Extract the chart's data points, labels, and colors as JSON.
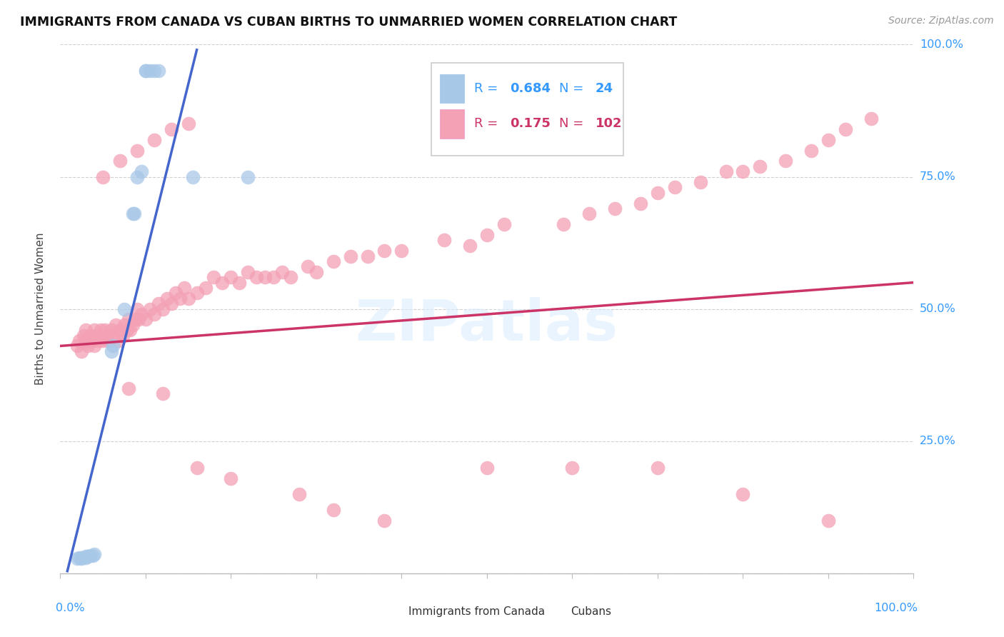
{
  "title": "IMMIGRANTS FROM CANADA VS CUBAN BIRTHS TO UNMARRIED WOMEN CORRELATION CHART",
  "source": "Source: ZipAtlas.com",
  "ylabel": "Births to Unmarried Women",
  "canada_R": 0.684,
  "canada_N": 24,
  "cubans_R": 0.175,
  "cubans_N": 102,
  "watermark": "ZIPatlas",
  "canada_color": "#A8C8E8",
  "cubans_color": "#F4A0B5",
  "canada_line_color": "#4466CC",
  "cubans_line_color": "#CC3366",
  "canada_points_x": [
    0.02,
    0.025,
    0.03,
    0.03,
    0.035,
    0.04,
    0.042,
    0.045,
    0.05,
    0.055,
    0.06,
    0.065,
    0.07,
    0.075,
    0.08,
    0.085,
    0.09,
    0.095,
    0.1,
    0.105,
    0.11,
    0.115,
    0.155,
    0.22
  ],
  "canada_points_y": [
    0.03,
    0.03,
    0.03,
    0.028,
    0.032,
    0.035,
    0.035,
    0.038,
    0.42,
    0.43,
    0.44,
    0.68,
    0.68,
    0.72,
    0.76,
    0.76,
    0.95,
    0.95,
    0.95,
    0.95,
    0.95,
    0.95,
    0.75,
    0.75
  ],
  "cubans_points_x": [
    0.02,
    0.022,
    0.025,
    0.027,
    0.03,
    0.03,
    0.032,
    0.035,
    0.037,
    0.04,
    0.04,
    0.042,
    0.045,
    0.047,
    0.05,
    0.052,
    0.055,
    0.057,
    0.06,
    0.062,
    0.065,
    0.068,
    0.07,
    0.073,
    0.075,
    0.078,
    0.08,
    0.082,
    0.085,
    0.088,
    0.09,
    0.092,
    0.095,
    0.1,
    0.105,
    0.11,
    0.115,
    0.12,
    0.125,
    0.13,
    0.135,
    0.14,
    0.145,
    0.15,
    0.16,
    0.17,
    0.18,
    0.19,
    0.2,
    0.21,
    0.22,
    0.23,
    0.24,
    0.25,
    0.26,
    0.27,
    0.29,
    0.3,
    0.32,
    0.34,
    0.36,
    0.38,
    0.4,
    0.42,
    0.45,
    0.48,
    0.5,
    0.52,
    0.54,
    0.56,
    0.59,
    0.62,
    0.65,
    0.68,
    0.7,
    0.72,
    0.75,
    0.78,
    0.8,
    0.82,
    0.85,
    0.88,
    0.9,
    0.92,
    0.95,
    0.65,
    0.7,
    0.75,
    0.8,
    0.85,
    0.9,
    0.08,
    0.09,
    0.1,
    0.11,
    0.12,
    0.13,
    0.14,
    0.15,
    0.16,
    0.17,
    0.18
  ],
  "cubans_points_y": [
    0.43,
    0.44,
    0.42,
    0.45,
    0.44,
    0.46,
    0.43,
    0.45,
    0.44,
    0.46,
    0.43,
    0.45,
    0.44,
    0.46,
    0.44,
    0.46,
    0.45,
    0.44,
    0.46,
    0.45,
    0.47,
    0.44,
    0.46,
    0.45,
    0.47,
    0.46,
    0.48,
    0.46,
    0.47,
    0.48,
    0.5,
    0.48,
    0.49,
    0.48,
    0.5,
    0.49,
    0.51,
    0.5,
    0.52,
    0.51,
    0.53,
    0.52,
    0.54,
    0.52,
    0.53,
    0.54,
    0.56,
    0.55,
    0.56,
    0.55,
    0.57,
    0.56,
    0.56,
    0.56,
    0.57,
    0.56,
    0.58,
    0.57,
    0.59,
    0.6,
    0.6,
    0.61,
    0.61,
    0.62,
    0.63,
    0.62,
    0.64,
    0.66,
    0.64,
    0.67,
    0.66,
    0.68,
    0.69,
    0.7,
    0.72,
    0.73,
    0.74,
    0.76,
    0.76,
    0.77,
    0.78,
    0.8,
    0.82,
    0.84,
    0.86,
    0.78,
    0.8,
    0.82,
    0.84,
    0.85,
    0.87,
    0.35,
    0.34,
    0.36,
    0.35,
    0.34,
    0.2,
    0.18,
    0.15,
    0.12,
    0.1,
    0.08
  ]
}
